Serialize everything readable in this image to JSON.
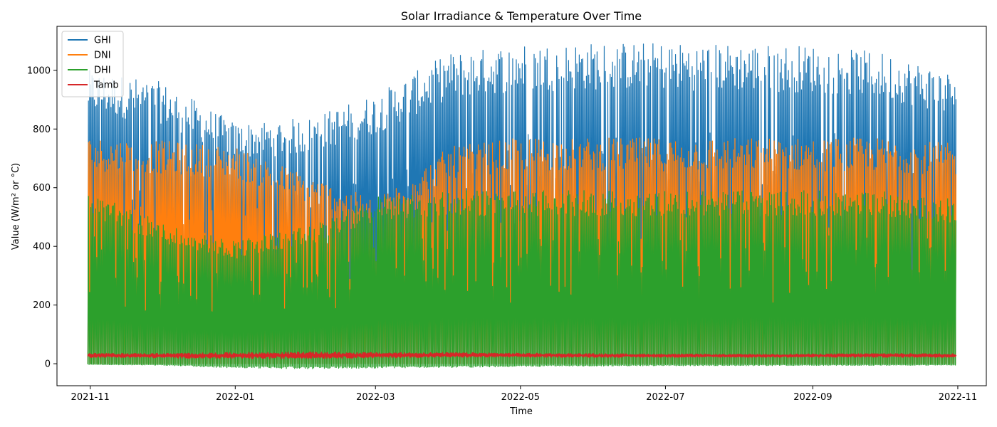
{
  "chart_data": {
    "type": "line",
    "title": "Solar Irradiance & Temperature Over Time",
    "xlabel": "Time",
    "ylabel": "Value (W/m² or °C)",
    "xlim": [
      "2021-10-18",
      "2022-11-13"
    ],
    "ylim": [
      -75,
      1150
    ],
    "x_ticks": [
      "2021-11",
      "2022-01",
      "2022-03",
      "2022-05",
      "2022-07",
      "2022-09",
      "2022-11"
    ],
    "y_ticks": [
      0,
      200,
      400,
      600,
      800,
      1000
    ],
    "grid": false,
    "legend": "top-left",
    "series": [
      {
        "name": "GHI",
        "color": "#1f77b4",
        "x_start": "2021-10-31",
        "x_end": "2022-10-31",
        "daily_max_monthly": [
          {
            "date": "2021-11-01",
            "value": 1000
          },
          {
            "date": "2021-12-01",
            "value": 960
          },
          {
            "date": "2022-01-01",
            "value": 820
          },
          {
            "date": "2022-02-01",
            "value": 840
          },
          {
            "date": "2022-03-01",
            "value": 920
          },
          {
            "date": "2022-04-01",
            "value": 1060
          },
          {
            "date": "2022-05-01",
            "value": 1090
          },
          {
            "date": "2022-06-01",
            "value": 1095
          },
          {
            "date": "2022-07-01",
            "value": 1095
          },
          {
            "date": "2022-08-01",
            "value": 1090
          },
          {
            "date": "2022-09-01",
            "value": 1085
          },
          {
            "date": "2022-10-01",
            "value": 1060
          },
          {
            "date": "2022-10-31",
            "value": 990
          }
        ],
        "min": 0
      },
      {
        "name": "DNI",
        "color": "#ff7f0e",
        "x_start": "2021-10-31",
        "x_end": "2022-10-31",
        "daily_max_monthly": [
          {
            "date": "2021-11-01",
            "value": 770
          },
          {
            "date": "2021-12-01",
            "value": 760
          },
          {
            "date": "2022-01-01",
            "value": 740
          },
          {
            "date": "2022-02-01",
            "value": 640
          },
          {
            "date": "2022-03-01",
            "value": 560
          },
          {
            "date": "2022-04-01",
            "value": 740
          },
          {
            "date": "2022-05-01",
            "value": 770
          },
          {
            "date": "2022-06-01",
            "value": 770
          },
          {
            "date": "2022-07-01",
            "value": 770
          },
          {
            "date": "2022-08-01",
            "value": 770
          },
          {
            "date": "2022-09-01",
            "value": 770
          },
          {
            "date": "2022-10-01",
            "value": 770
          },
          {
            "date": "2022-10-31",
            "value": 750
          }
        ],
        "min": 0
      },
      {
        "name": "DHI",
        "color": "#2ca02c",
        "x_start": "2021-10-31",
        "x_end": "2022-10-31",
        "daily_max_monthly": [
          {
            "date": "2021-11-01",
            "value": 590
          },
          {
            "date": "2021-12-01",
            "value": 480
          },
          {
            "date": "2022-01-01",
            "value": 420
          },
          {
            "date": "2022-02-01",
            "value": 470
          },
          {
            "date": "2022-03-01",
            "value": 570
          },
          {
            "date": "2022-04-01",
            "value": 590
          },
          {
            "date": "2022-05-01",
            "value": 590
          },
          {
            "date": "2022-06-01",
            "value": 590
          },
          {
            "date": "2022-07-01",
            "value": 590
          },
          {
            "date": "2022-08-01",
            "value": 590
          },
          {
            "date": "2022-09-01",
            "value": 590
          },
          {
            "date": "2022-10-01",
            "value": 590
          },
          {
            "date": "2022-10-31",
            "value": 560
          }
        ],
        "min_monthly": [
          {
            "date": "2021-11-01",
            "value": -3
          },
          {
            "date": "2021-12-01",
            "value": -5
          },
          {
            "date": "2022-01-01",
            "value": -15
          },
          {
            "date": "2022-02-01",
            "value": -17
          },
          {
            "date": "2022-03-01",
            "value": -15
          },
          {
            "date": "2022-04-01",
            "value": -13
          },
          {
            "date": "2022-05-01",
            "value": -10
          },
          {
            "date": "2022-06-01",
            "value": -8
          },
          {
            "date": "2022-07-01",
            "value": -7
          },
          {
            "date": "2022-08-01",
            "value": -7
          },
          {
            "date": "2022-09-01",
            "value": -6
          },
          {
            "date": "2022-10-01",
            "value": -6
          },
          {
            "date": "2022-10-31",
            "value": -5
          }
        ]
      },
      {
        "name": "Tamb",
        "color": "#d62728",
        "x_start": "2021-10-31",
        "x_end": "2022-10-31",
        "range_monthly": [
          {
            "date": "2021-11-01",
            "low": 22,
            "high": 35
          },
          {
            "date": "2021-12-01",
            "low": 20,
            "high": 35
          },
          {
            "date": "2022-01-01",
            "low": 17,
            "high": 38
          },
          {
            "date": "2022-02-01",
            "low": 18,
            "high": 40
          },
          {
            "date": "2022-03-01",
            "low": 20,
            "high": 38
          },
          {
            "date": "2022-04-01",
            "low": 22,
            "high": 38
          },
          {
            "date": "2022-05-01",
            "low": 22,
            "high": 36
          },
          {
            "date": "2022-06-01",
            "low": 22,
            "high": 34
          },
          {
            "date": "2022-07-01",
            "low": 22,
            "high": 33
          },
          {
            "date": "2022-08-01",
            "low": 22,
            "high": 32
          },
          {
            "date": "2022-09-01",
            "low": 22,
            "high": 33
          },
          {
            "date": "2022-10-01",
            "low": 22,
            "high": 35
          },
          {
            "date": "2022-10-31",
            "low": 22,
            "high": 34
          }
        ]
      }
    ]
  }
}
